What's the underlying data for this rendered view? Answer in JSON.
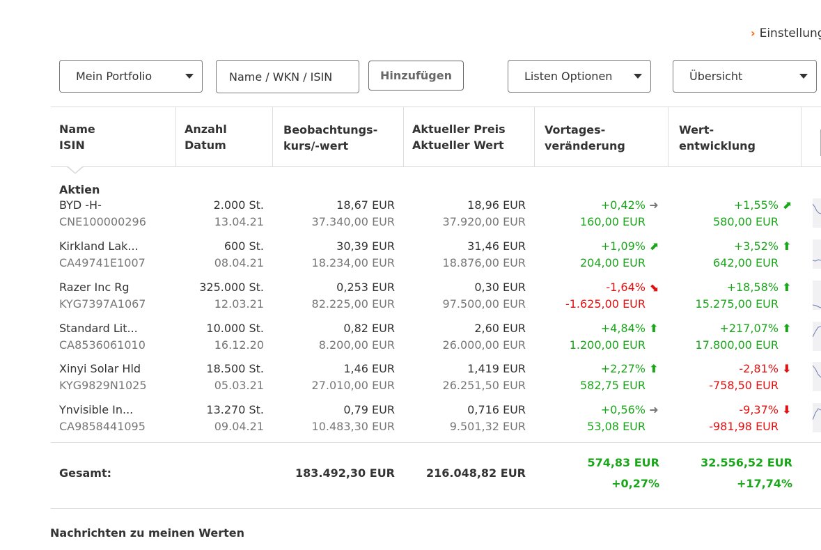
{
  "settings_link": "Einstellung",
  "toolbar": {
    "portfolio_select": "Mein Portfolio",
    "search_placeholder": "Name / WKN / ISIN",
    "add_button": "Hinzufügen",
    "list_options": "Listen Optionen",
    "view_select": "Übersicht"
  },
  "columns": [
    {
      "l1": "Name",
      "l2": "ISIN"
    },
    {
      "l1": "Anzahl",
      "l2": "Datum"
    },
    {
      "l1": "Beobachtungs-",
      "l2": "kurs/-wert"
    },
    {
      "l1": "Aktueller Preis",
      "l2": "Aktueller Wert"
    },
    {
      "l1": "Vortages-",
      "l2": "veränderung"
    },
    {
      "l1": "Wert-",
      "l2": "entwicklung"
    }
  ],
  "group": "Aktien",
  "rows": [
    {
      "name": "BYD -H-",
      "isin": "CNE100000296",
      "qty": "2.000 St.",
      "date": "13.04.21",
      "watch_price": "18,67 EUR",
      "watch_value": "37.340,00 EUR",
      "cur_price": "18,96 EUR",
      "cur_value": "37.920,00 EUR",
      "day_pct": "+0,42%",
      "day_abs": "160,00 EUR",
      "day_dir": "flat",
      "day_sign": "pos",
      "perf_pct": "+1,55%",
      "perf_abs": "580,00 EUR",
      "perf_dir": "ne",
      "perf_sign": "pos"
    },
    {
      "name": "Kirkland Lak...",
      "isin": "CA49741E1007",
      "qty": "600 St.",
      "date": "08.04.21",
      "watch_price": "30,39 EUR",
      "watch_value": "18.234,00 EUR",
      "cur_price": "31,46 EUR",
      "cur_value": "18.876,00 EUR",
      "day_pct": "+1,09%",
      "day_abs": "204,00 EUR",
      "day_dir": "ne",
      "day_sign": "pos",
      "perf_pct": "+3,52%",
      "perf_abs": "642,00 EUR",
      "perf_dir": "up",
      "perf_sign": "pos"
    },
    {
      "name": "Razer Inc Rg",
      "isin": "KYG7397A1067",
      "qty": "325.000 St.",
      "date": "12.03.21",
      "watch_price": "0,253 EUR",
      "watch_value": "82.225,00 EUR",
      "cur_price": "0,30 EUR",
      "cur_value": "97.500,00 EUR",
      "day_pct": "-1,64%",
      "day_abs": "-1.625,00 EUR",
      "day_dir": "se",
      "day_sign": "neg",
      "perf_pct": "+18,58%",
      "perf_abs": "15.275,00 EUR",
      "perf_dir": "up",
      "perf_sign": "pos"
    },
    {
      "name": "Standard Lit...",
      "isin": "CA8536061010",
      "qty": "10.000 St.",
      "date": "16.12.20",
      "watch_price": "0,82 EUR",
      "watch_value": "8.200,00 EUR",
      "cur_price": "2,60 EUR",
      "cur_value": "26.000,00 EUR",
      "day_pct": "+4,84%",
      "day_abs": "1.200,00 EUR",
      "day_dir": "up",
      "day_sign": "pos",
      "perf_pct": "+217,07%",
      "perf_abs": "17.800,00 EUR",
      "perf_dir": "up",
      "perf_sign": "pos"
    },
    {
      "name": "Xinyi Solar Hld",
      "isin": "KYG9829N1025",
      "qty": "18.500 St.",
      "date": "05.03.21",
      "watch_price": "1,46 EUR",
      "watch_value": "27.010,00 EUR",
      "cur_price": "1,419 EUR",
      "cur_value": "26.251,50 EUR",
      "day_pct": "+2,27%",
      "day_abs": "582,75 EUR",
      "day_dir": "up",
      "day_sign": "pos",
      "perf_pct": "-2,81%",
      "perf_abs": "-758,50 EUR",
      "perf_dir": "down",
      "perf_sign": "neg"
    },
    {
      "name": "Ynvisible In...",
      "isin": "CA9858441095",
      "qty": "13.270 St.",
      "date": "09.04.21",
      "watch_price": "0,79 EUR",
      "watch_value": "10.483,30 EUR",
      "cur_price": "0,716 EUR",
      "cur_value": "9.501,32 EUR",
      "day_pct": "+0,56%",
      "day_abs": "53,08 EUR",
      "day_dir": "flat",
      "day_sign": "pos",
      "perf_pct": "-9,37%",
      "perf_abs": "-981,98 EUR",
      "perf_dir": "down",
      "perf_sign": "neg"
    }
  ],
  "totals": {
    "label": "Gesamt:",
    "watch_value": "183.492,30 EUR",
    "cur_value": "216.048,82 EUR",
    "day_abs": "574,83 EUR",
    "day_pct": "+0,27%",
    "perf_abs": "32.556,52 EUR",
    "perf_pct": "+17,74%"
  },
  "news_title": "Nachrichten zu meinen Werten",
  "colors": {
    "positive": "#1aa51a",
    "negative": "#e11010",
    "accent": "#ff6200"
  },
  "icons": {
    "flat": "arrow-right-icon",
    "ne": "arrow-up-right-icon",
    "up": "arrow-up-icon",
    "se": "arrow-down-right-icon",
    "down": "arrow-down-icon"
  }
}
